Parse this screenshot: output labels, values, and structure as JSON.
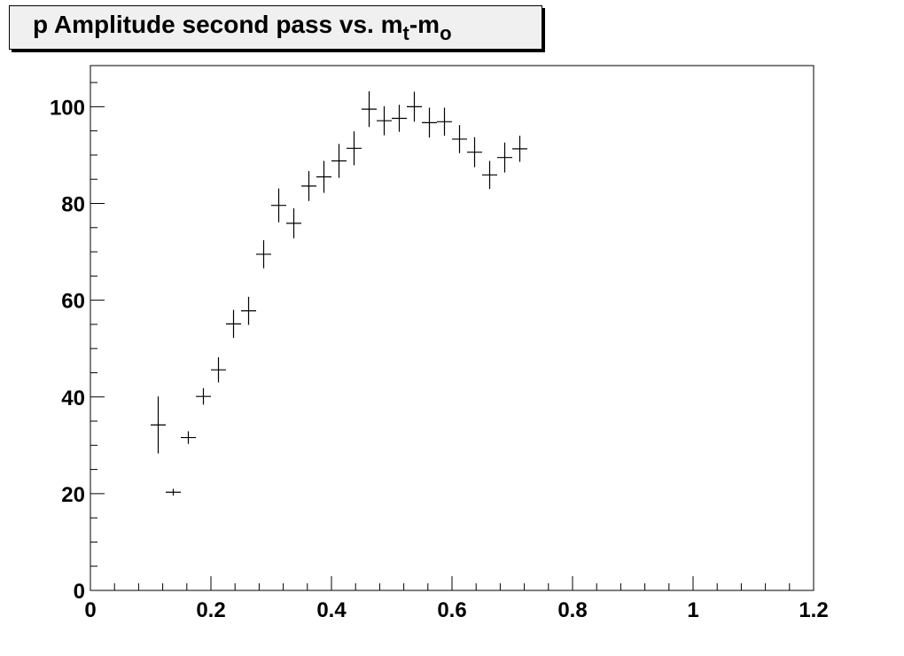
{
  "title": {
    "main": "p Amplitude second pass vs. m",
    "sub1": "t",
    "mid": "-m",
    "sub2": "o"
  },
  "chart_data": {
    "type": "scatter",
    "title": "p Amplitude second pass vs. mt-mo",
    "xlabel": "",
    "ylabel": "",
    "xlim": [
      0,
      1.2
    ],
    "ylim": [
      0,
      108.5
    ],
    "xticks": [
      0,
      0.2,
      0.4,
      0.6,
      0.8,
      1,
      1.2
    ],
    "xtick_labels": [
      "0",
      "0.2",
      "0.4",
      "0.6",
      "0.8",
      "1",
      "1.2"
    ],
    "yticks": [
      0,
      20,
      40,
      60,
      80,
      100
    ],
    "ytick_labels": [
      "0",
      "20",
      "40",
      "60",
      "80",
      "100"
    ],
    "grid": false,
    "x_bin_halfwidth": 0.0125,
    "series": [
      {
        "x": [
          0.1125,
          0.1375,
          0.1625,
          0.1875,
          0.2125,
          0.2375,
          0.2625,
          0.2875,
          0.3125,
          0.3375,
          0.3625,
          0.3875,
          0.4125,
          0.4375,
          0.4625,
          0.4875,
          0.5125,
          0.5375,
          0.5625,
          0.5875,
          0.6125,
          0.6375,
          0.6625,
          0.6875,
          0.7125
        ],
        "y": [
          34.2,
          20.3,
          31.6,
          40.1,
          45.6,
          55.1,
          57.8,
          69.5,
          79.6,
          75.9,
          83.6,
          85.5,
          88.8,
          91.4,
          99.5,
          97.1,
          97.6,
          100.0,
          96.7,
          96.9,
          93.3,
          90.6,
          85.9,
          89.5,
          91.3
        ],
        "yerr": [
          5.9,
          0.7,
          1.3,
          1.7,
          2.6,
          2.9,
          2.9,
          2.9,
          3.5,
          3.1,
          3.1,
          3.3,
          3.5,
          3.5,
          3.7,
          3.0,
          2.8,
          3.1,
          3.1,
          2.9,
          2.9,
          3.1,
          2.9,
          3.1,
          2.7
        ]
      }
    ]
  }
}
